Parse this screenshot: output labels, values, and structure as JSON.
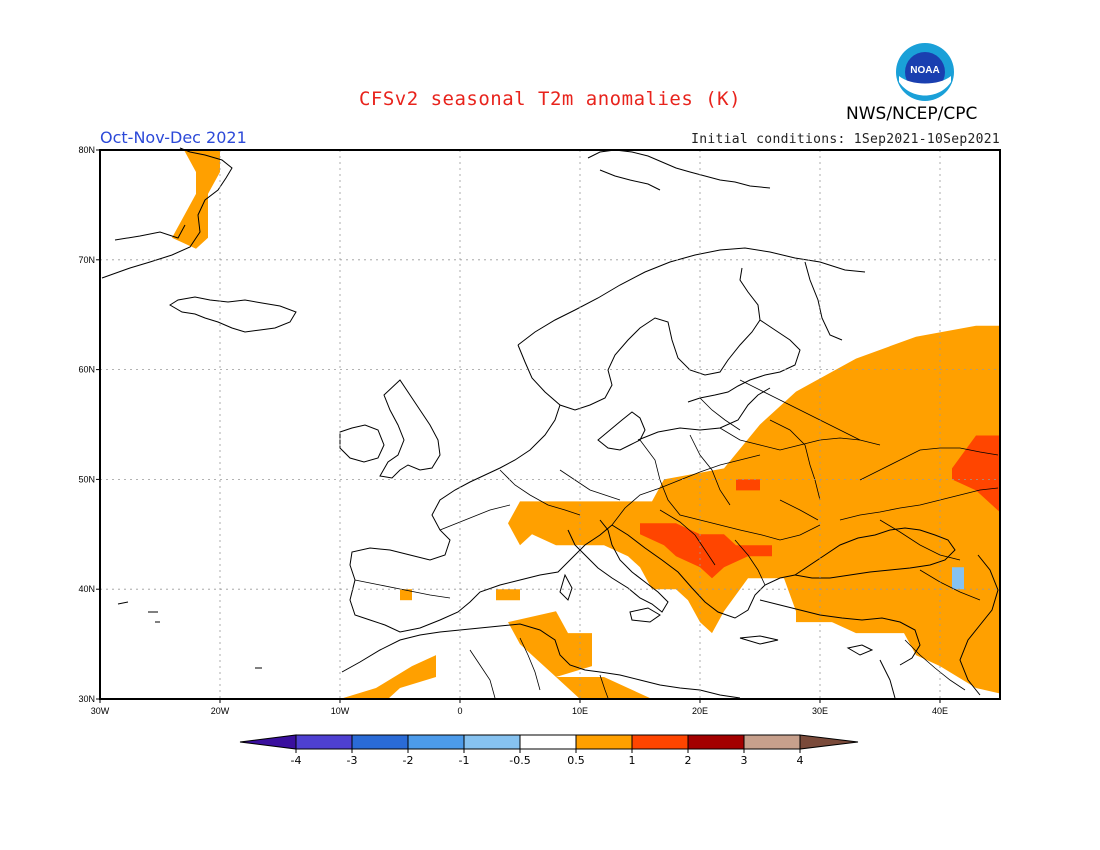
{
  "header": {
    "title": "CFSv2 seasonal T2m anomalies (K)",
    "season": "Oct-Nov-Dec 2021",
    "initial_conditions": "Initial conditions: 1Sep2021-10Sep2021",
    "agency": "NWS/NCEP/CPC",
    "logo_text": "NOAA"
  },
  "map": {
    "lon_range": [
      -30,
      45
    ],
    "lat_range": [
      30,
      80
    ],
    "lon_ticks": [
      "30W",
      "20W",
      "10W",
      "0",
      "10E",
      "20E",
      "30E",
      "40E"
    ],
    "lat_ticks": [
      "30N",
      "40N",
      "50N",
      "60N",
      "70N",
      "80N"
    ],
    "anomaly_regions": [
      {
        "level": "0.5-1",
        "cells": [
          [
            -23,
            79
          ],
          [
            -22,
            79
          ],
          [
            -21,
            77
          ],
          [
            -21,
            76
          ],
          [
            -22,
            75
          ],
          [
            -23,
            74
          ],
          [
            -22,
            73
          ],
          [
            -22,
            72
          ],
          [
            -21,
            71
          ],
          [
            -9,
            30
          ],
          [
            -6,
            32
          ],
          [
            -3,
            34
          ],
          [
            -5,
            31
          ],
          [
            5,
            35
          ],
          [
            7,
            33
          ],
          [
            11,
            30
          ],
          [
            13,
            31
          ],
          [
            16,
            30
          ],
          [
            10,
            42
          ],
          [
            12,
            44
          ],
          [
            13,
            43
          ],
          [
            14,
            42
          ],
          [
            16,
            41
          ],
          [
            17,
            40
          ],
          [
            18,
            39
          ],
          [
            19,
            38
          ],
          [
            20,
            37
          ],
          [
            21,
            38
          ],
          [
            22,
            39
          ],
          [
            25,
            40
          ],
          [
            28,
            37
          ],
          [
            30,
            36
          ],
          [
            32,
            35
          ],
          [
            37,
            36
          ],
          [
            40,
            35
          ],
          [
            43,
            33
          ],
          [
            44,
            31
          ]
        ]
      },
      {
        "level": "1-2",
        "cells": [
          [
            15,
            46
          ],
          [
            17,
            45
          ],
          [
            19,
            44
          ],
          [
            20,
            43
          ],
          [
            24,
            44
          ],
          [
            26,
            44
          ],
          [
            23,
            50
          ],
          [
            43,
            52
          ],
          [
            42,
            49
          ],
          [
            41,
            48
          ],
          [
            44,
            51
          ],
          [
            45,
            50
          ]
        ]
      },
      {
        "level": "-1--0.5",
        "cells": [
          [
            41,
            42
          ],
          [
            41,
            41
          ]
        ]
      }
    ]
  },
  "legend": {
    "labels": [
      "-4",
      "-3",
      "-2",
      "-1",
      "-0.5",
      "0.5",
      "1",
      "2",
      "3",
      "4"
    ],
    "colors": [
      "#3a0f9e",
      "#4e40d1",
      "#2a6bd6",
      "#4c9bea",
      "#86c2f0",
      "#ffffff",
      "#ffa000",
      "#ff4500",
      "#a30000",
      "#c7a08c",
      "#7a4a3a"
    ]
  },
  "colors": {
    "title": "#e8231c",
    "season": "#2c49d8",
    "anomaly_05_1": "#ffa000",
    "anomaly_1_2": "#ff4500",
    "anomaly_neg": "#86c2f0"
  }
}
